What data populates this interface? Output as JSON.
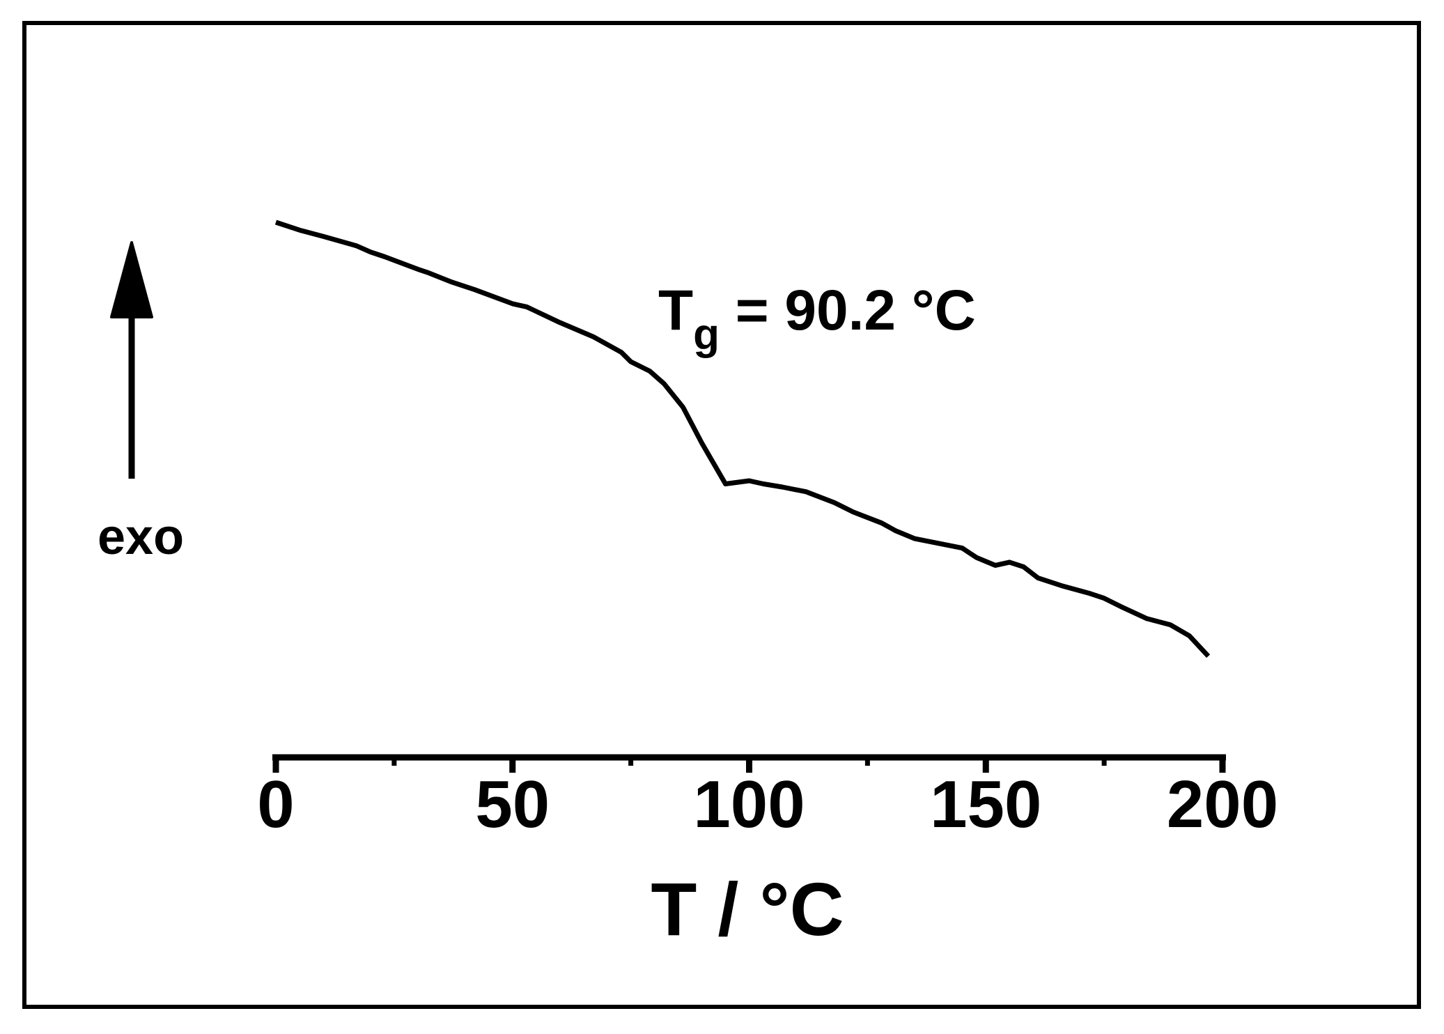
{
  "chart_data": {
    "type": "line",
    "title": "",
    "xlabel": "T / °C",
    "ylabel": "",
    "xlim": [
      0,
      200
    ],
    "y_ticks_shown": false,
    "grid": false,
    "x_ticks": [
      0,
      50,
      100,
      150,
      200
    ],
    "x_tick_labels": [
      "0",
      "50",
      "100",
      "150",
      "200"
    ],
    "x_minor_ticks": [
      25,
      75,
      125,
      175
    ],
    "series": [
      {
        "x": [
          0,
          5,
          10,
          17,
          20,
          23,
          30,
          32,
          37,
          42,
          50,
          53,
          60,
          67,
          73,
          75,
          79,
          82,
          86,
          90,
          95,
          100,
          103,
          107,
          112,
          118,
          122,
          128,
          131,
          135,
          145,
          148,
          152,
          155,
          158,
          161,
          166,
          172,
          175,
          179,
          184,
          189,
          193,
          197
        ],
        "y": [
          98.0,
          95.5,
          93.5,
          90.5,
          88.5,
          87.0,
          83.0,
          82.0,
          79.0,
          76.5,
          72.0,
          71.0,
          66.0,
          61.5,
          56.5,
          53.5,
          50.5,
          46.5,
          39.0,
          27.5,
          14.5,
          15.5,
          14.5,
          13.5,
          12.0,
          8.5,
          5.5,
          2.0,
          -0.5,
          -3.0,
          -6.0,
          -9.0,
          -11.5,
          -10.5,
          -12.0,
          -15.5,
          -18.0,
          -20.5,
          -22.0,
          -25.0,
          -28.5,
          -30.5,
          -34.0,
          -40.5
        ]
      }
    ],
    "annotations": {
      "tg_base": "T",
      "tg_sub": "g",
      "tg_value": " = 90.2 °C",
      "direction_label": "exo"
    }
  }
}
